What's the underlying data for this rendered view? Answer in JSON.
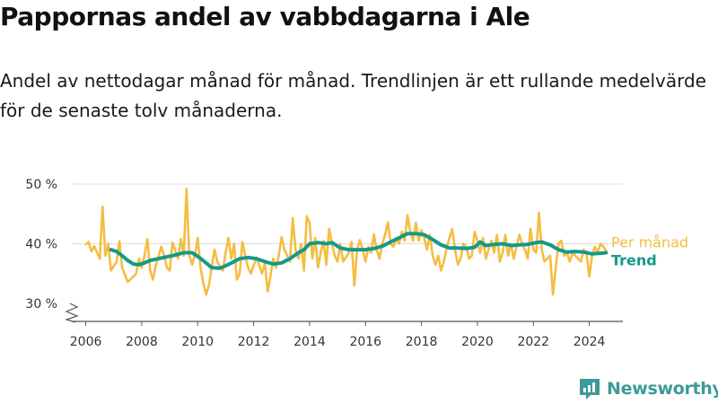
{
  "title": "Pappornas andel av vabbdagarna i Ale",
  "subtitle": "Andel av nettodagar månad för månad. Trendlinjen är ett rullande medelvärde för de senaste tolv månaderna.",
  "brand": {
    "name": "Newsworthy",
    "color": "#3d9a99"
  },
  "chart_data": {
    "type": "line",
    "ylim": [
      30,
      50
    ],
    "xlim": [
      2005.5,
      2025.2
    ],
    "y_ticks": [
      {
        "value": 30,
        "label": "30 %"
      },
      {
        "value": 40,
        "label": "40 %"
      },
      {
        "value": 50,
        "label": "50 %"
      }
    ],
    "x_ticks": [
      {
        "value": 2006,
        "label": "2006"
      },
      {
        "value": 2008,
        "label": "2008"
      },
      {
        "value": 2010,
        "label": "2010"
      },
      {
        "value": 2012,
        "label": "2012"
      },
      {
        "value": 2014,
        "label": "2014"
      },
      {
        "value": 2016,
        "label": "2016"
      },
      {
        "value": 2018,
        "label": "2018"
      },
      {
        "value": 2020,
        "label": "2020"
      },
      {
        "value": 2022,
        "label": "2022"
      },
      {
        "value": 2024,
        "label": "2024"
      }
    ],
    "grid": true,
    "y_axis_break": true,
    "legend": "direct labels at right end of lines",
    "series": [
      {
        "name": "Per månad",
        "color": "#f5bd42",
        "points": [
          [
            2006.0,
            39.9
          ],
          [
            2006.1,
            40.3
          ],
          [
            2006.2,
            38.7
          ],
          [
            2006.3,
            39.6
          ],
          [
            2006.5,
            37.5
          ],
          [
            2006.6,
            46.2
          ],
          [
            2006.7,
            38.0
          ],
          [
            2006.8,
            40.0
          ],
          [
            2006.9,
            35.5
          ],
          [
            2007.1,
            37.0
          ],
          [
            2007.2,
            40.4
          ],
          [
            2007.3,
            36.0
          ],
          [
            2007.5,
            33.6
          ],
          [
            2007.7,
            34.5
          ],
          [
            2007.8,
            35.0
          ],
          [
            2007.9,
            37.5
          ],
          [
            2008.0,
            36.0
          ],
          [
            2008.1,
            38.0
          ],
          [
            2008.2,
            40.8
          ],
          [
            2008.3,
            35.5
          ],
          [
            2008.4,
            34.0
          ],
          [
            2008.5,
            36.3
          ],
          [
            2008.7,
            39.5
          ],
          [
            2008.8,
            38.0
          ],
          [
            2008.9,
            36.0
          ],
          [
            2009.0,
            35.5
          ],
          [
            2009.1,
            40.2
          ],
          [
            2009.3,
            37.5
          ],
          [
            2009.4,
            40.8
          ],
          [
            2009.5,
            38.0
          ],
          [
            2009.6,
            49.2
          ],
          [
            2009.7,
            38.0
          ],
          [
            2009.8,
            36.5
          ],
          [
            2009.9,
            38.0
          ],
          [
            2010.0,
            41.0
          ],
          [
            2010.1,
            36.0
          ],
          [
            2010.2,
            33.5
          ],
          [
            2010.3,
            31.5
          ],
          [
            2010.4,
            33.0
          ],
          [
            2010.6,
            39.0
          ],
          [
            2010.7,
            37.0
          ],
          [
            2010.8,
            36.2
          ],
          [
            2010.9,
            35.5
          ],
          [
            2011.0,
            38.5
          ],
          [
            2011.1,
            41.0
          ],
          [
            2011.2,
            37.5
          ],
          [
            2011.3,
            40.0
          ],
          [
            2011.4,
            34.0
          ],
          [
            2011.5,
            35.0
          ],
          [
            2011.6,
            40.3
          ],
          [
            2011.7,
            38.0
          ],
          [
            2011.8,
            36.0
          ],
          [
            2011.9,
            35.0
          ],
          [
            2012.1,
            37.7
          ],
          [
            2012.2,
            36.5
          ],
          [
            2012.3,
            35.0
          ],
          [
            2012.4,
            36.8
          ],
          [
            2012.5,
            32.0
          ],
          [
            2012.6,
            34.5
          ],
          [
            2012.7,
            37.5
          ],
          [
            2012.8,
            36.0
          ],
          [
            2012.9,
            38.0
          ],
          [
            2013.0,
            41.1
          ],
          [
            2013.1,
            39.0
          ],
          [
            2013.3,
            37.0
          ],
          [
            2013.4,
            44.3
          ],
          [
            2013.5,
            39.0
          ],
          [
            2013.6,
            37.5
          ],
          [
            2013.7,
            40.0
          ],
          [
            2013.8,
            35.5
          ],
          [
            2013.9,
            44.6
          ],
          [
            2014.0,
            43.5
          ],
          [
            2014.1,
            37.5
          ],
          [
            2014.2,
            41.0
          ],
          [
            2014.3,
            36.0
          ],
          [
            2014.4,
            38.5
          ],
          [
            2014.5,
            40.5
          ],
          [
            2014.6,
            36.5
          ],
          [
            2014.7,
            42.5
          ],
          [
            2014.8,
            40.0
          ],
          [
            2014.9,
            38.0
          ],
          [
            2015.0,
            37.0
          ],
          [
            2015.1,
            40.0
          ],
          [
            2015.2,
            37.0
          ],
          [
            2015.4,
            38.5
          ],
          [
            2015.5,
            40.3
          ],
          [
            2015.6,
            33.0
          ],
          [
            2015.7,
            39.0
          ],
          [
            2015.8,
            40.6
          ],
          [
            2015.9,
            39.0
          ],
          [
            2016.0,
            37.0
          ],
          [
            2016.1,
            39.5
          ],
          [
            2016.2,
            38.5
          ],
          [
            2016.3,
            41.6
          ],
          [
            2016.4,
            39.0
          ],
          [
            2016.5,
            37.5
          ],
          [
            2016.6,
            40.0
          ],
          [
            2016.7,
            41.5
          ],
          [
            2016.8,
            43.6
          ],
          [
            2016.9,
            40.0
          ],
          [
            2017.0,
            39.5
          ],
          [
            2017.1,
            41.0
          ],
          [
            2017.2,
            40.0
          ],
          [
            2017.3,
            42.0
          ],
          [
            2017.4,
            40.5
          ],
          [
            2017.5,
            44.8
          ],
          [
            2017.6,
            42.0
          ],
          [
            2017.7,
            40.5
          ],
          [
            2017.8,
            43.5
          ],
          [
            2017.9,
            40.5
          ],
          [
            2018.0,
            42.3
          ],
          [
            2018.1,
            41.0
          ],
          [
            2018.2,
            39.0
          ],
          [
            2018.3,
            41.5
          ],
          [
            2018.4,
            38.0
          ],
          [
            2018.5,
            36.5
          ],
          [
            2018.6,
            38.0
          ],
          [
            2018.7,
            35.5
          ],
          [
            2018.8,
            37.0
          ],
          [
            2018.9,
            39.3
          ],
          [
            2019.0,
            41.0
          ],
          [
            2019.1,
            42.5
          ],
          [
            2019.2,
            39.0
          ],
          [
            2019.3,
            36.5
          ],
          [
            2019.4,
            37.5
          ],
          [
            2019.5,
            40.0
          ],
          [
            2019.6,
            39.5
          ],
          [
            2019.7,
            37.5
          ],
          [
            2019.8,
            38.0
          ],
          [
            2019.9,
            42.0
          ],
          [
            2020.0,
            40.5
          ],
          [
            2020.1,
            38.5
          ],
          [
            2020.2,
            41.0
          ],
          [
            2020.3,
            37.5
          ],
          [
            2020.4,
            39.0
          ],
          [
            2020.5,
            40.5
          ],
          [
            2020.6,
            38.5
          ],
          [
            2020.7,
            41.5
          ],
          [
            2020.8,
            37.0
          ],
          [
            2020.9,
            38.5
          ],
          [
            2021.0,
            41.5
          ],
          [
            2021.1,
            38.0
          ],
          [
            2021.2,
            40.0
          ],
          [
            2021.3,
            37.5
          ],
          [
            2021.5,
            41.5
          ],
          [
            2021.6,
            40.0
          ],
          [
            2021.7,
            39.0
          ],
          [
            2021.8,
            37.5
          ],
          [
            2021.9,
            42.5
          ],
          [
            2022.0,
            39.0
          ],
          [
            2022.1,
            38.5
          ],
          [
            2022.2,
            45.2
          ],
          [
            2022.3,
            39.0
          ],
          [
            2022.4,
            37.0
          ],
          [
            2022.5,
            37.5
          ],
          [
            2022.6,
            38.0
          ],
          [
            2022.7,
            31.5
          ],
          [
            2022.8,
            36.0
          ],
          [
            2022.9,
            40.0
          ],
          [
            2023.0,
            40.5
          ],
          [
            2023.1,
            38.0
          ],
          [
            2023.2,
            38.5
          ],
          [
            2023.3,
            37.0
          ],
          [
            2023.4,
            38.5
          ],
          [
            2023.5,
            38.0
          ],
          [
            2023.7,
            37.0
          ],
          [
            2023.8,
            39.0
          ],
          [
            2023.9,
            38.5
          ],
          [
            2024.0,
            34.5
          ],
          [
            2024.1,
            38.0
          ],
          [
            2024.2,
            39.5
          ],
          [
            2024.3,
            38.5
          ],
          [
            2024.4,
            40.0
          ],
          [
            2024.5,
            39.5
          ],
          [
            2024.6,
            38.8
          ]
        ]
      },
      {
        "name": "Trend",
        "color": "#14998a",
        "points": [
          [
            2006.9,
            39.0
          ],
          [
            2007.1,
            38.7
          ],
          [
            2007.3,
            38.0
          ],
          [
            2007.5,
            37.2
          ],
          [
            2007.7,
            36.6
          ],
          [
            2007.9,
            36.5
          ],
          [
            2008.1,
            36.8
          ],
          [
            2008.3,
            37.2
          ],
          [
            2008.6,
            37.5
          ],
          [
            2008.9,
            37.8
          ],
          [
            2009.2,
            38.1
          ],
          [
            2009.5,
            38.5
          ],
          [
            2009.8,
            38.5
          ],
          [
            2010.0,
            37.9
          ],
          [
            2010.3,
            36.8
          ],
          [
            2010.5,
            36.0
          ],
          [
            2010.8,
            35.9
          ],
          [
            2011.0,
            36.3
          ],
          [
            2011.3,
            37.0
          ],
          [
            2011.5,
            37.5
          ],
          [
            2011.8,
            37.7
          ],
          [
            2012.1,
            37.5
          ],
          [
            2012.4,
            37.0
          ],
          [
            2012.7,
            36.6
          ],
          [
            2013.0,
            36.8
          ],
          [
            2013.3,
            37.5
          ],
          [
            2013.6,
            38.5
          ],
          [
            2013.8,
            39.0
          ],
          [
            2014.0,
            40.0
          ],
          [
            2014.3,
            40.2
          ],
          [
            2014.6,
            40.0
          ],
          [
            2014.8,
            40.2
          ],
          [
            2015.1,
            39.3
          ],
          [
            2015.4,
            39.0
          ],
          [
            2015.7,
            39.0
          ],
          [
            2016.0,
            39.0
          ],
          [
            2016.3,
            39.2
          ],
          [
            2016.6,
            39.6
          ],
          [
            2016.9,
            40.3
          ],
          [
            2017.2,
            41.0
          ],
          [
            2017.5,
            41.7
          ],
          [
            2017.8,
            41.7
          ],
          [
            2018.1,
            41.5
          ],
          [
            2018.4,
            40.7
          ],
          [
            2018.7,
            39.8
          ],
          [
            2019.0,
            39.3
          ],
          [
            2019.3,
            39.3
          ],
          [
            2019.6,
            39.2
          ],
          [
            2019.9,
            39.4
          ],
          [
            2020.1,
            40.3
          ],
          [
            2020.3,
            39.7
          ],
          [
            2020.6,
            39.9
          ],
          [
            2020.9,
            40.0
          ],
          [
            2021.2,
            39.7
          ],
          [
            2021.5,
            39.8
          ],
          [
            2021.8,
            39.9
          ],
          [
            2022.1,
            40.2
          ],
          [
            2022.3,
            40.3
          ],
          [
            2022.6,
            39.8
          ],
          [
            2022.9,
            39.0
          ],
          [
            2023.2,
            38.6
          ],
          [
            2023.5,
            38.7
          ],
          [
            2023.8,
            38.6
          ],
          [
            2024.1,
            38.3
          ],
          [
            2024.4,
            38.4
          ],
          [
            2024.6,
            38.5
          ]
        ]
      }
    ]
  }
}
